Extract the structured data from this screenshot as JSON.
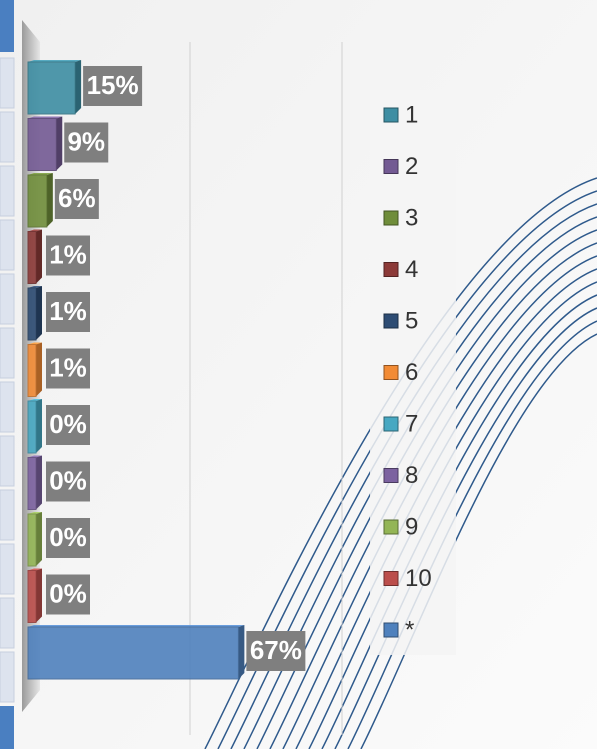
{
  "chart_data": {
    "type": "bar",
    "orientation": "horizontal",
    "categories": [
      "1",
      "2",
      "3",
      "4",
      "5",
      "6",
      "7",
      "8",
      "9",
      "10",
      "*"
    ],
    "values": [
      15,
      9,
      6,
      1,
      1,
      1,
      0,
      0,
      0,
      0,
      67
    ],
    "value_labels": [
      "15%",
      "9%",
      "6%",
      "1%",
      "1%",
      "1%",
      "0%",
      "0%",
      "0%",
      "0%",
      "67%"
    ],
    "colors": [
      "#3e8ea3",
      "#735a93",
      "#6f8d3a",
      "#8c3a38",
      "#2d4c73",
      "#f28b35",
      "#47a8c2",
      "#7c62a0",
      "#93b555",
      "#bb4e4b",
      "#4f81bd"
    ],
    "xlim": [
      0,
      100
    ]
  }
}
